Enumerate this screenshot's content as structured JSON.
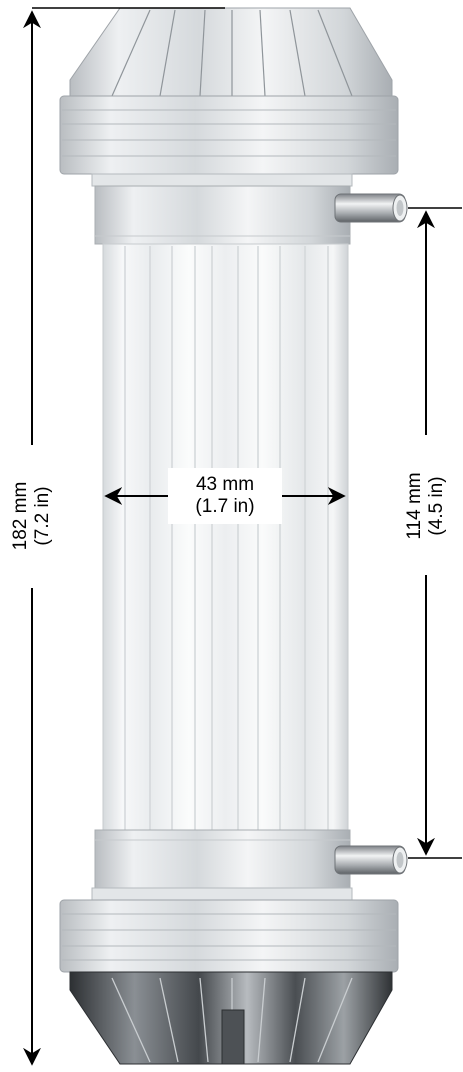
{
  "dimensions": {
    "height_total": {
      "mm": "182 mm",
      "in": "(7.2 in)"
    },
    "diameter": {
      "mm": "43 mm",
      "in": "(1.7 in)"
    },
    "port_spacing": {
      "mm": "114 mm",
      "in": "(4.5 in)"
    }
  },
  "colors": {
    "arrow": "#000000",
    "body_tint": "#eef0f1",
    "metal_dark": "#3a3d40",
    "metal_light": "#d9dcdf"
  }
}
